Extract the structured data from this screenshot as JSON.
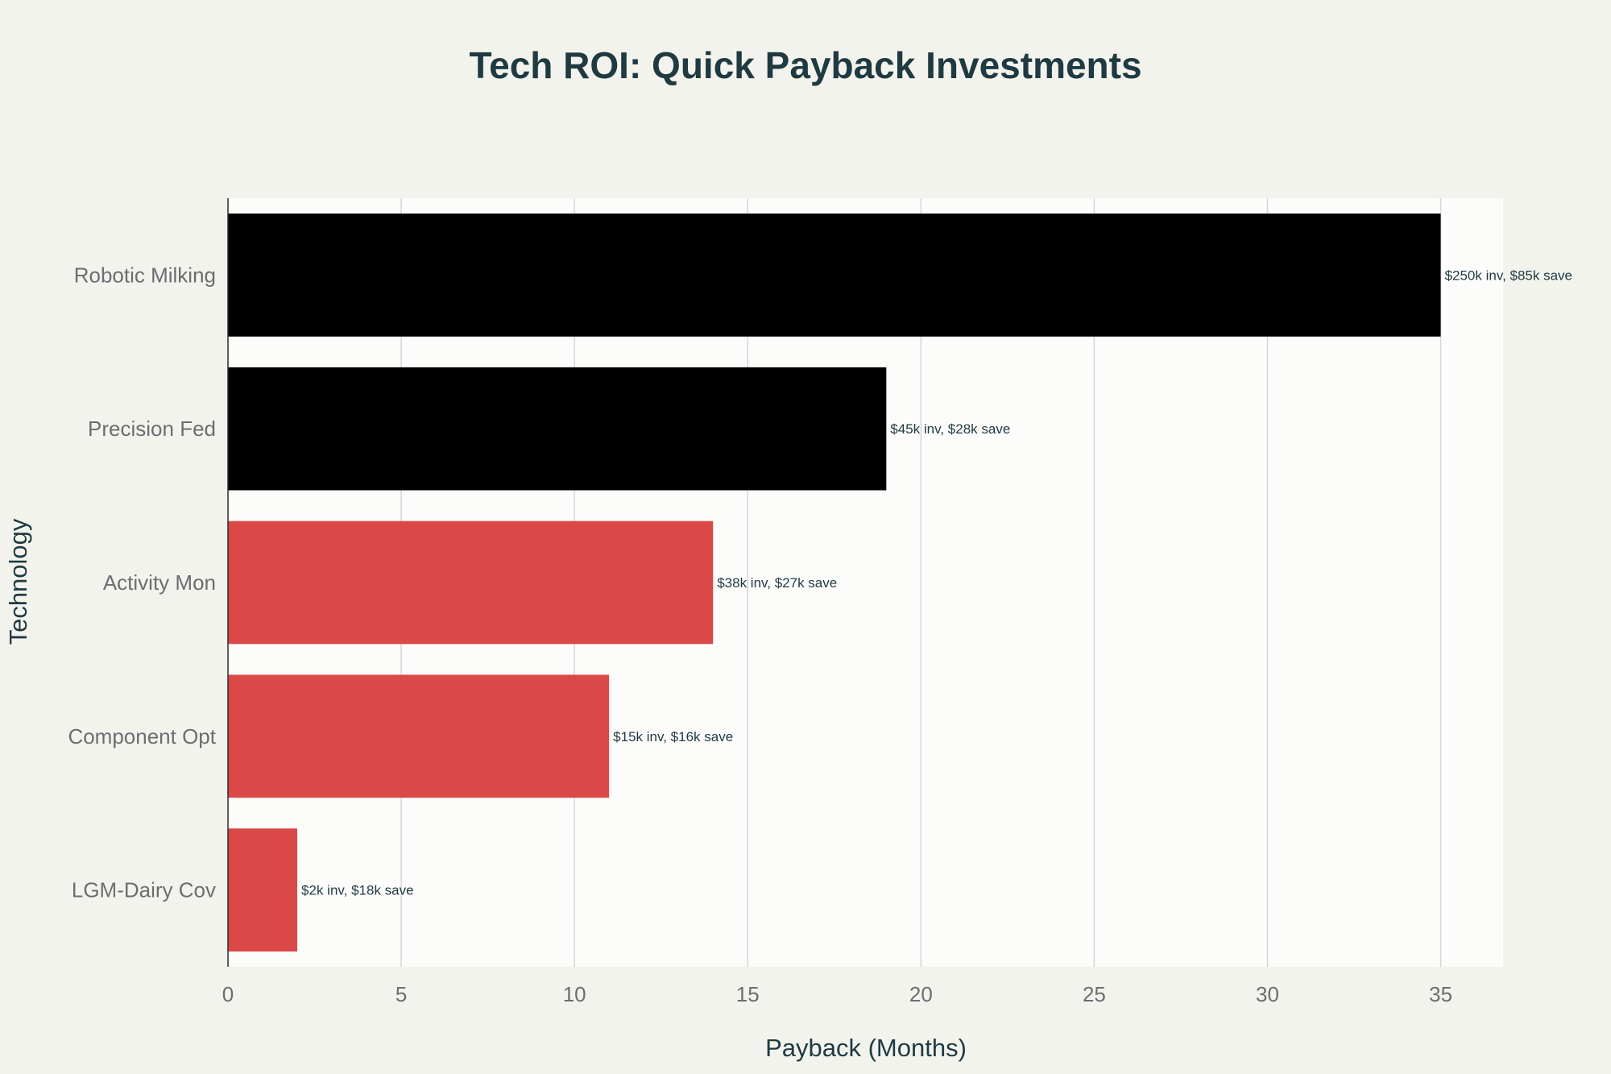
{
  "chart_data": {
    "type": "bar",
    "orientation": "horizontal",
    "title": "Tech ROI: Quick Payback Investments",
    "xlabel": "Payback (Months)",
    "ylabel": "Technology",
    "xlim": [
      0,
      36.8
    ],
    "xticks": [
      0,
      5,
      10,
      15,
      20,
      25,
      30,
      35
    ],
    "grid": true,
    "legend": "none",
    "categories": [
      "Robotic Milking",
      "Precision Fed",
      "Activity Mon",
      "Component Opt",
      "LGM-Dairy Cov"
    ],
    "values": [
      35,
      19,
      14,
      11,
      2
    ],
    "data_labels": [
      "$250k inv, $85k save",
      "$45k inv, $28k save",
      "$38k inv, $27k save",
      "$15k inv, $16k save",
      "$2k inv, $18k save"
    ],
    "bar_colors": [
      "#000000",
      "#000000",
      "#db4848",
      "#db4848",
      "#db4848"
    ]
  },
  "colors": {
    "background": "#f3f3ee",
    "plot_background": "#fcfcfb",
    "text_dark": "#1f3a40",
    "tick_text": "#6b6e70"
  }
}
